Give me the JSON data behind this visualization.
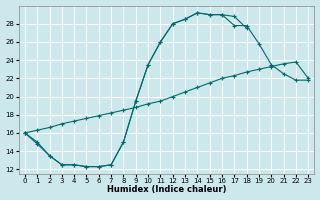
{
  "xlabel": "Humidex (Indice chaleur)",
  "xlim": [
    -0.5,
    23.5
  ],
  "ylim": [
    11.5,
    30
  ],
  "yticks": [
    12,
    14,
    16,
    18,
    20,
    22,
    24,
    26,
    28
  ],
  "xticks": [
    0,
    1,
    2,
    3,
    4,
    5,
    6,
    7,
    8,
    9,
    10,
    11,
    12,
    13,
    14,
    15,
    16,
    17,
    18,
    19,
    20,
    21,
    22,
    23
  ],
  "bg_color": "#cce8ec",
  "grid_color": "#ffffff",
  "line_color": "#006b6b",
  "line1_x": [
    0,
    1,
    2,
    3,
    4,
    5,
    6,
    7,
    8,
    9,
    10,
    11,
    12,
    13,
    14,
    15,
    16,
    17,
    18
  ],
  "line1_y": [
    16,
    15,
    13.5,
    12.5,
    12.5,
    12.3,
    12.3,
    12.5,
    15,
    19.5,
    23.5,
    26,
    28,
    28.5,
    29.2,
    29,
    29,
    28.8,
    27.5
  ],
  "line2_x": [
    0,
    1,
    2,
    3,
    4,
    5,
    6,
    7,
    8,
    9,
    10,
    11,
    12,
    13,
    14,
    15,
    16,
    17,
    18,
    19,
    20,
    21,
    22,
    23
  ],
  "line2_y": [
    16,
    16.3,
    16.6,
    17,
    17.3,
    17.6,
    17.9,
    18.2,
    18.5,
    18.8,
    19.2,
    19.5,
    20,
    20.5,
    21,
    21.5,
    22,
    22.3,
    22.7,
    23,
    23.3,
    23.6,
    23.8,
    22
  ],
  "line3_x": [
    0,
    1,
    2,
    3,
    4,
    5,
    6,
    7,
    8,
    9,
    10,
    11,
    12,
    13,
    14,
    15,
    16,
    17,
    18,
    19,
    20,
    21,
    22,
    23
  ],
  "line3_y": [
    16,
    14.8,
    13.5,
    12.5,
    12.5,
    12.3,
    12.3,
    12.5,
    15,
    19.5,
    23.5,
    26,
    28,
    28.5,
    29.2,
    29,
    29,
    27.8,
    27.8,
    25.8,
    23.5,
    22.5,
    21.8,
    21.8
  ]
}
